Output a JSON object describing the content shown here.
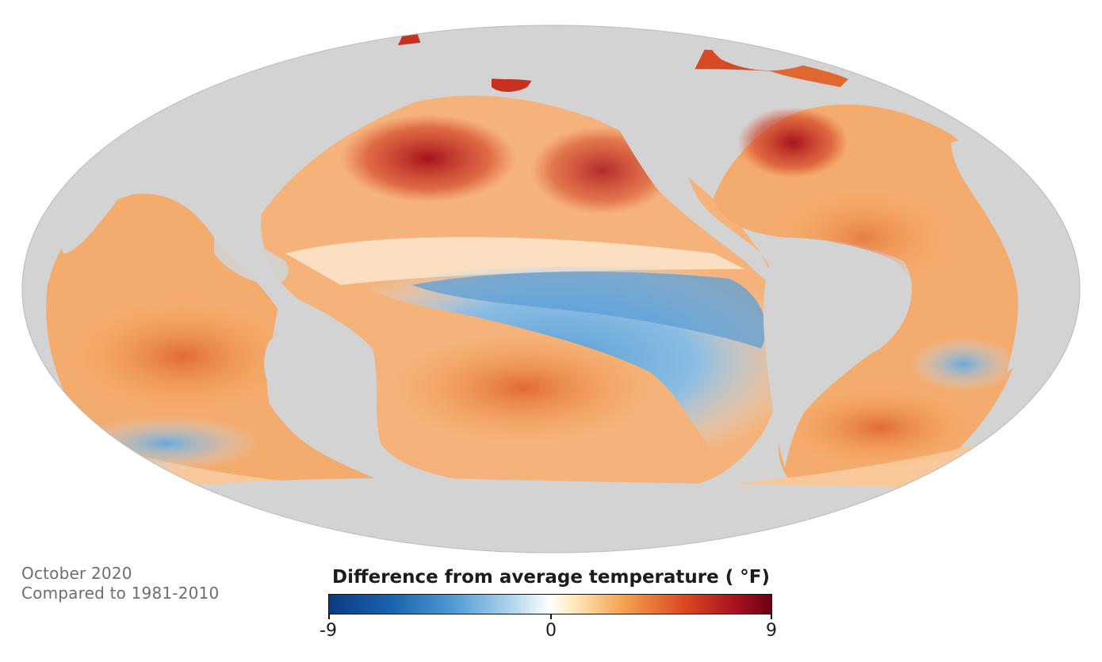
{
  "caption": {
    "date": "October 2020",
    "baseline": "Compared to 1981-2010"
  },
  "legend": {
    "title": "Difference from average temperature ( °F)",
    "min_label": "-9",
    "mid_label": "0",
    "max_label": "9",
    "min_value": -9,
    "mid_value": 0,
    "max_value": 9,
    "colors": {
      "strong_cold": "#0a3a84",
      "cold": "#4f9ad3",
      "neutral": "#ffffff",
      "warm": "#f6a553",
      "hot": "#dc4a24",
      "strong_hot": "#6b0015",
      "land": "#d3d3d3"
    }
  }
}
